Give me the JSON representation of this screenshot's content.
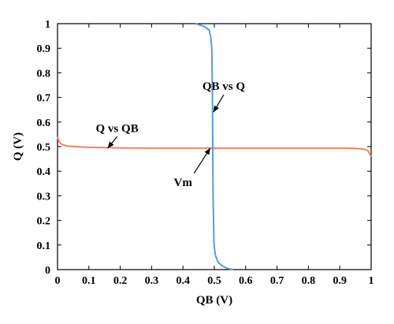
{
  "chart_data": {
    "type": "line",
    "xlabel": "QB (V)",
    "ylabel": "Q (V)",
    "xlim": [
      0,
      1
    ],
    "ylim": [
      0,
      1
    ],
    "grid": false,
    "x_ticks": [
      "0",
      "0.1",
      "0.2",
      "0.3",
      "0.4",
      "0.5",
      "0.6",
      "0.7",
      "0.8",
      "0.9",
      "1"
    ],
    "y_ticks": [
      "0",
      "0.1",
      "0.2",
      "0.3",
      "0.4",
      "0.5",
      "0.6",
      "0.7",
      "0.8",
      "0.9",
      "1"
    ],
    "series": [
      {
        "color": "#f4845f",
        "axis_mapping": "y_vs_x",
        "points": [
          [
            0,
            0.54
          ],
          [
            0.005,
            0.52
          ],
          [
            0.015,
            0.508
          ],
          [
            0.03,
            0.503
          ],
          [
            0.06,
            0.5
          ],
          [
            0.1,
            0.497
          ],
          [
            0.2,
            0.495
          ],
          [
            0.3,
            0.494
          ],
          [
            0.4,
            0.494
          ],
          [
            0.5,
            0.494
          ],
          [
            0.6,
            0.494
          ],
          [
            0.7,
            0.494
          ],
          [
            0.8,
            0.494
          ],
          [
            0.9,
            0.494
          ],
          [
            0.95,
            0.493
          ],
          [
            0.975,
            0.49
          ],
          [
            0.99,
            0.483
          ],
          [
            1,
            0.46
          ]
        ]
      },
      {
        "color": "#5b9bd5",
        "axis_mapping": "x_vs_y",
        "points": [
          [
            0,
            0.56
          ],
          [
            0.005,
            0.54
          ],
          [
            0.015,
            0.525
          ],
          [
            0.03,
            0.512
          ],
          [
            0.06,
            0.503
          ],
          [
            0.1,
            0.499
          ],
          [
            0.3,
            0.496
          ],
          [
            0.5,
            0.495
          ],
          [
            0.7,
            0.494
          ],
          [
            0.9,
            0.492
          ],
          [
            0.95,
            0.488
          ],
          [
            0.975,
            0.483
          ],
          [
            0.99,
            0.465
          ],
          [
            1,
            0.44
          ]
        ]
      }
    ],
    "annotations": [
      {
        "text": "Q vs QB",
        "x": 0.19,
        "y": 0.56,
        "arrow_to": [
          0.16,
          0.494
        ]
      },
      {
        "text": "QB vs Q",
        "x": 0.53,
        "y": 0.73,
        "arrow_to": [
          0.497,
          0.64
        ]
      },
      {
        "text": "Vm",
        "x": 0.4,
        "y": 0.34,
        "arrow_to": [
          0.487,
          0.494
        ]
      }
    ]
  }
}
